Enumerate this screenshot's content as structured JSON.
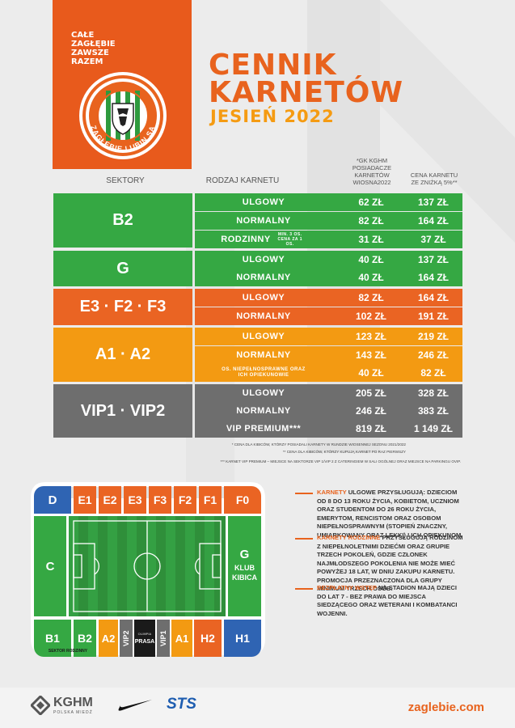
{
  "header": {
    "slogan_line1": "CAŁE",
    "slogan_line2": "ZAGŁĘBIE",
    "slogan_line3": "ZAWSZE",
    "slogan_line4": "RAZEM",
    "crest_text": "ZAGŁĘBIE LUBIN SA",
    "title_line1": "CENNIK",
    "title_line2": "KARNETÓW",
    "subtitle": "JESIEŃ 2022"
  },
  "table": {
    "col_sectors": "SEKTORY",
    "col_type": "RODZAJ KARNETU",
    "col_price1_line1": "*GK KGHM",
    "col_price1_line2": "POSIADACZE",
    "col_price1_line3": "KARNETÓW",
    "col_price1_line4": "WIOSNA2022",
    "col_price2_line1": "CENA KARNETU",
    "col_price2_line2": "ZE ZNIŻKĄ 5%**",
    "groups": [
      {
        "sector": "B2",
        "color": "#35a843",
        "rows": [
          {
            "label": "ULGOWY",
            "note": "",
            "p1": "62 ZŁ",
            "p2": "137 ZŁ"
          },
          {
            "label": "NORMALNY",
            "note": "",
            "p1": "82 ZŁ",
            "p2": "164 ZŁ"
          },
          {
            "label": "RODZINNY",
            "note": "MIN. 3 OS. CENA ZA 1 OS.",
            "p1": "31 ZŁ",
            "p2": "37 ZŁ"
          }
        ]
      },
      {
        "sector": "G",
        "color": "#35a843",
        "rows": [
          {
            "label": "ULGOWY",
            "note": "",
            "p1": "40 ZŁ",
            "p2": "137 ZŁ"
          },
          {
            "label": "NORMALNY",
            "note": "",
            "p1": "40 ZŁ",
            "p2": "164 ZŁ"
          }
        ]
      },
      {
        "sector": "E3 · F2 · F3",
        "color": "#ea6423",
        "rows": [
          {
            "label": "ULGOWY",
            "note": "",
            "p1": "82 ZŁ",
            "p2": "164 ZŁ"
          },
          {
            "label": "NORMALNY",
            "note": "",
            "p1": "102 ZŁ",
            "p2": "191 ZŁ"
          }
        ]
      },
      {
        "sector": "A1 · A2",
        "color": "#f39a12",
        "rows": [
          {
            "label": "ULGOWY",
            "note": "",
            "p1": "123 ZŁ",
            "p2": "219 ZŁ"
          },
          {
            "label": "NORMALNY",
            "note": "",
            "p1": "143 ZŁ",
            "p2": "246 ZŁ"
          },
          {
            "label": "OS. NIEPEŁNOSPRAWNE ORAZ ICH OPIEKUNOWIE",
            "note": "",
            "p1": "40 ZŁ",
            "p2": "82 ZŁ"
          }
        ]
      },
      {
        "sector": "VIP1 · VIP2",
        "color": "#6e6e6e",
        "rows": [
          {
            "label": "ULGOWY",
            "note": "",
            "p1": "205 ZŁ",
            "p2": "328 ZŁ"
          },
          {
            "label": "NORMALNY",
            "note": "",
            "p1": "246 ZŁ",
            "p2": "383 ZŁ"
          },
          {
            "label": "VIP PREMIUM***",
            "note": "",
            "p1": "819 ZŁ",
            "p2": "1 149 ZŁ"
          }
        ]
      }
    ],
    "footnote1": "* CENA DLA KIBICÓW, KTÓRZY POSIADALI KARNETY W RUNDZIE WIOSENNEJ SEZONU 2021/2022",
    "footnote2": "** CENA DLA KIBICÓW, KTÓRZY KUPUJĄ KARNET PO RAZ PIERWSZY",
    "footnote3": "*** KARNET VIP PREMIUM – MIEJSCE NA SEKTORZE VIP 1/VIP 2 Z CATERINGIEM W SALI OGÓLNEJ ORAZ MIEJSCE NA PARKINGU OVIP."
  },
  "stadium": {
    "top": [
      "D",
      "E1",
      "E2",
      "E3",
      "F3",
      "F2",
      "F1",
      "F0"
    ],
    "left": "C",
    "right_line1": "G",
    "right_line2": "KLUB",
    "right_line3": "KIBICA",
    "b1": "B1",
    "b2": "B2",
    "family_sector": "SEKTOR RODZINNY",
    "a2": "A2",
    "vip2": "VIP2",
    "press": "PRASA",
    "press_top": "OLIMPIA",
    "vip1": "VIP1",
    "a1": "A1",
    "h2": "H2",
    "h1": "H1"
  },
  "info": {
    "p1_highlight": "KARNETY",
    "p1_text": "ULGOWE PRZYSŁUGUJĄ: DZIECIOM OD 8 DO 13 ROKU ŻYCIA, KOBIETOM, UCZNIOM ORAZ STUDENTOM DO 26 ROKU ŻYCIA, EMERYTOM, RENCISTOM ORAZ OSOBOM NIEPEŁNOSPRAWNYM (STOPIEŃ ZNACZNY, UMIARKOWANY ORAZ LEKKI) I ICH OPIEKUNOM.",
    "p2_highlight": "KARNETY RODZINNE",
    "p2_text": "PRZYSŁUGUJĄ RODZINOM Z NIEPEŁNOLETNIMI DZIEĆMI ORAZ GRUPIE TRZECH POKOLEŃ, GDZIE CZŁONEK NAJMŁODSZEGO POKOLENIA NIE MOŻE MIEĆ POWYŻEJ 18 LAT, W DNIU ZAKUPU KARNETU. PROMOCJA PRZEZNACZONA DLA GRUPY MINIMUM TRZECH OSÓB.",
    "p3_highlight": "BEZPŁATNY WSTĘP",
    "p3_text": "NA STADION MAJĄ DZIECI DO LAT 7 - BEZ PRAWA DO MIEJSCA SIEDZĄCEGO ORAZ WETERANI I KOMBATANCI WOJENNI."
  },
  "footer": {
    "kghm": "KGHM",
    "kghm_sub": "POLSKA MIEDŹ",
    "sts": "STS",
    "website": "zaglebie.com"
  },
  "colors": {
    "orange": "#e8631e",
    "green": "#35a843",
    "amber": "#f39a12",
    "grey": "#6e6e6e"
  }
}
